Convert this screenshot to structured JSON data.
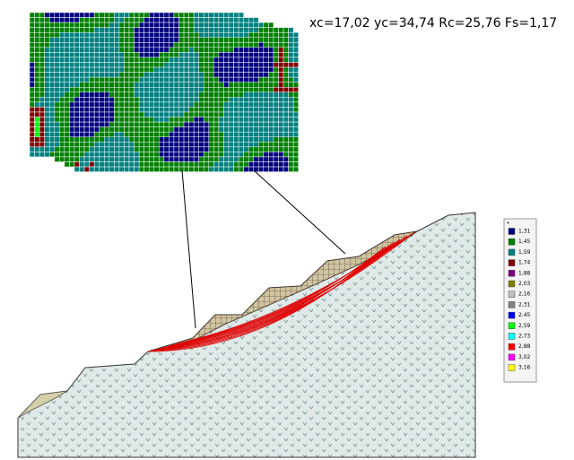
{
  "header": {
    "title": "xc=17,02 yc=34,74 Rc=25,76 Fs=1,17"
  },
  "legend": {
    "marker": "*",
    "items": [
      {
        "label": "1,31",
        "color": "#000080"
      },
      {
        "label": "1,45",
        "color": "#008000"
      },
      {
        "label": "1,59",
        "color": "#008080"
      },
      {
        "label": "1,74",
        "color": "#800000"
      },
      {
        "label": "1,88",
        "color": "#800080"
      },
      {
        "label": "2,03",
        "color": "#808000"
      },
      {
        "label": "2,16",
        "color": "#c0c0c0"
      },
      {
        "label": "2,31",
        "color": "#808080"
      },
      {
        "label": "2,45",
        "color": "#0000ff"
      },
      {
        "label": "2,59",
        "color": "#00ff00"
      },
      {
        "label": "2,73",
        "color": "#00ffff"
      },
      {
        "label": "2,88",
        "color": "#ff0000"
      },
      {
        "label": "3,02",
        "color": "#ff00ff"
      },
      {
        "label": "3,16",
        "color": "#ffff00"
      }
    ]
  }
}
